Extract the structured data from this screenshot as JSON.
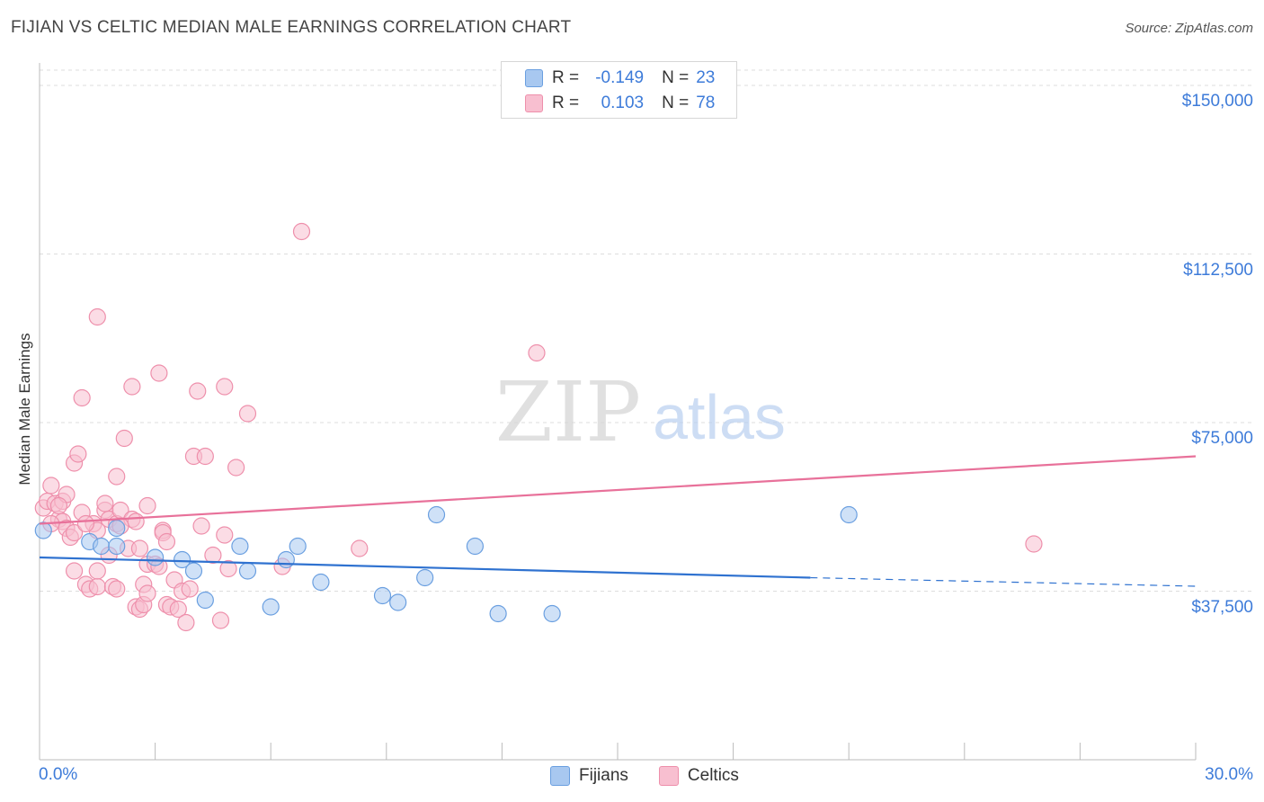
{
  "header": {
    "title": "FIJIAN VS CELTIC MEDIAN MALE EARNINGS CORRELATION CHART",
    "source": "Source: ZipAtlas.com"
  },
  "watermark": {
    "zip": "ZIP",
    "atlas": "atlas"
  },
  "legend_top": {
    "rows": [
      {
        "r_label": "R =",
        "r_value": "-0.149",
        "n_label": "N =",
        "n_value": "23",
        "color": "#a8c8f0",
        "border": "#6a9fe0"
      },
      {
        "r_label": "R =",
        "r_value": "0.103",
        "n_label": "N =",
        "n_value": "78",
        "color": "#f8bfd0",
        "border": "#ee8fab"
      }
    ]
  },
  "legend_bottom": {
    "items": [
      {
        "label": "Fijians"
      },
      {
        "label": "Celtics"
      }
    ]
  },
  "colors": {
    "fijians_fill": "#a8c8f0",
    "fijians_stroke": "#6a9fe0",
    "fijians_line": "#2f72d0",
    "celtics_fill": "#f8bfd0",
    "celtics_stroke": "#ee8fab",
    "celtics_line": "#e8719a",
    "tick_text": "#3d7bd9",
    "grid": "#dddddd"
  },
  "chart_data": {
    "type": "scatter",
    "title": "FIJIAN VS CELTIC MEDIAN MALE EARNINGS CORRELATION CHART",
    "xlabel": "",
    "ylabel": "Median Male Earnings",
    "xlim": [
      0,
      30
    ],
    "ylim": [
      0,
      155000
    ],
    "x_tick_labels": [
      "0.0%",
      "30.0%"
    ],
    "y_ticks": [
      37500,
      75000,
      112500,
      150000
    ],
    "y_tick_labels": [
      "$37,500",
      "$75,000",
      "$112,500",
      "$150,000"
    ],
    "grid": true,
    "series": [
      {
        "name": "Fijians",
        "r": -0.149,
        "n": 23,
        "trend": {
          "x": [
            0,
            20
          ],
          "y": [
            45000,
            40500
          ],
          "dashed_to_x": 30,
          "dashed_y_end": 38600
        },
        "points": [
          {
            "x": 0.1,
            "y": 51000
          },
          {
            "x": 1.3,
            "y": 48500
          },
          {
            "x": 1.6,
            "y": 47500
          },
          {
            "x": 2.0,
            "y": 47500
          },
          {
            "x": 2.0,
            "y": 51500
          },
          {
            "x": 3.0,
            "y": 45000
          },
          {
            "x": 3.7,
            "y": 44500
          },
          {
            "x": 4.0,
            "y": 42000
          },
          {
            "x": 4.3,
            "y": 35500
          },
          {
            "x": 5.2,
            "y": 47500
          },
          {
            "x": 5.4,
            "y": 42000
          },
          {
            "x": 6.0,
            "y": 34000
          },
          {
            "x": 6.4,
            "y": 44500
          },
          {
            "x": 6.7,
            "y": 47500
          },
          {
            "x": 7.3,
            "y": 39500
          },
          {
            "x": 8.9,
            "y": 36500
          },
          {
            "x": 9.3,
            "y": 35000
          },
          {
            "x": 10.0,
            "y": 40500
          },
          {
            "x": 10.3,
            "y": 54500
          },
          {
            "x": 11.3,
            "y": 47500
          },
          {
            "x": 11.9,
            "y": 32500
          },
          {
            "x": 13.3,
            "y": 32500
          },
          {
            "x": 21.0,
            "y": 54500
          }
        ]
      },
      {
        "name": "Celtics",
        "r": 0.103,
        "n": 78,
        "trend": {
          "x": [
            0,
            30
          ],
          "y": [
            52500,
            67500
          ]
        },
        "points": [
          {
            "x": 0.1,
            "y": 56000
          },
          {
            "x": 0.2,
            "y": 57500
          },
          {
            "x": 0.3,
            "y": 61000
          },
          {
            "x": 0.4,
            "y": 57000
          },
          {
            "x": 0.5,
            "y": 53500
          },
          {
            "x": 0.6,
            "y": 53000
          },
          {
            "x": 0.6,
            "y": 57500
          },
          {
            "x": 0.7,
            "y": 51500
          },
          {
            "x": 0.7,
            "y": 59000
          },
          {
            "x": 0.8,
            "y": 49500
          },
          {
            "x": 0.9,
            "y": 42000
          },
          {
            "x": 0.9,
            "y": 66000
          },
          {
            "x": 1.0,
            "y": 68000
          },
          {
            "x": 1.1,
            "y": 55000
          },
          {
            "x": 1.1,
            "y": 80500
          },
          {
            "x": 1.2,
            "y": 39000
          },
          {
            "x": 1.3,
            "y": 38000
          },
          {
            "x": 1.4,
            "y": 52500
          },
          {
            "x": 1.5,
            "y": 38500
          },
          {
            "x": 1.5,
            "y": 42000
          },
          {
            "x": 1.5,
            "y": 51000
          },
          {
            "x": 1.5,
            "y": 98500
          },
          {
            "x": 1.7,
            "y": 55500
          },
          {
            "x": 1.7,
            "y": 57000
          },
          {
            "x": 1.8,
            "y": 45500
          },
          {
            "x": 1.8,
            "y": 53500
          },
          {
            "x": 1.9,
            "y": 38500
          },
          {
            "x": 2.0,
            "y": 38000
          },
          {
            "x": 2.0,
            "y": 52500
          },
          {
            "x": 2.0,
            "y": 63000
          },
          {
            "x": 2.1,
            "y": 55500
          },
          {
            "x": 2.2,
            "y": 71500
          },
          {
            "x": 2.3,
            "y": 47000
          },
          {
            "x": 2.4,
            "y": 83000
          },
          {
            "x": 2.4,
            "y": 53500
          },
          {
            "x": 2.5,
            "y": 34000
          },
          {
            "x": 2.5,
            "y": 53000
          },
          {
            "x": 2.6,
            "y": 33500
          },
          {
            "x": 2.6,
            "y": 47000
          },
          {
            "x": 2.7,
            "y": 34500
          },
          {
            "x": 2.7,
            "y": 39000
          },
          {
            "x": 2.8,
            "y": 43500
          },
          {
            "x": 2.8,
            "y": 37000
          },
          {
            "x": 2.8,
            "y": 56500
          },
          {
            "x": 3.0,
            "y": 43500
          },
          {
            "x": 3.1,
            "y": 43000
          },
          {
            "x": 3.1,
            "y": 86000
          },
          {
            "x": 3.2,
            "y": 51000
          },
          {
            "x": 3.2,
            "y": 50500
          },
          {
            "x": 3.3,
            "y": 34500
          },
          {
            "x": 3.4,
            "y": 34000
          },
          {
            "x": 3.5,
            "y": 40000
          },
          {
            "x": 3.6,
            "y": 33500
          },
          {
            "x": 3.7,
            "y": 37500
          },
          {
            "x": 3.8,
            "y": 30500
          },
          {
            "x": 3.9,
            "y": 38000
          },
          {
            "x": 4.0,
            "y": 67500
          },
          {
            "x": 4.1,
            "y": 82000
          },
          {
            "x": 4.2,
            "y": 52000
          },
          {
            "x": 4.3,
            "y": 67500
          },
          {
            "x": 4.5,
            "y": 45500
          },
          {
            "x": 4.7,
            "y": 31000
          },
          {
            "x": 4.8,
            "y": 83000
          },
          {
            "x": 4.8,
            "y": 50000
          },
          {
            "x": 4.9,
            "y": 42500
          },
          {
            "x": 5.1,
            "y": 65000
          },
          {
            "x": 5.4,
            "y": 77000
          },
          {
            "x": 6.3,
            "y": 43000
          },
          {
            "x": 6.8,
            "y": 117500
          },
          {
            "x": 8.3,
            "y": 47000
          },
          {
            "x": 12.9,
            "y": 90500
          },
          {
            "x": 25.8,
            "y": 48000
          },
          {
            "x": 0.3,
            "y": 52500
          },
          {
            "x": 0.9,
            "y": 50500
          },
          {
            "x": 1.2,
            "y": 52500
          },
          {
            "x": 2.1,
            "y": 52000
          },
          {
            "x": 3.3,
            "y": 48500
          },
          {
            "x": 0.5,
            "y": 56500
          }
        ]
      }
    ]
  }
}
